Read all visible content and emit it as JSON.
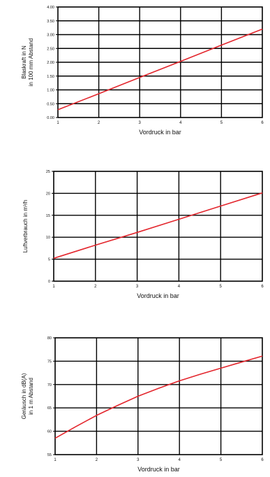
{
  "chart_data": [
    {
      "type": "line",
      "title": "",
      "xlabel": "Vordruck in bar",
      "ylabel": [
        "Blaskraft in N",
        "in 100 mm Abstand"
      ],
      "xlim": [
        1,
        6
      ],
      "ylim": [
        0,
        4
      ],
      "x_ticks": [
        1,
        2,
        3,
        4,
        5,
        6
      ],
      "y_ticks": [
        "0.00",
        "0.50",
        "1.00",
        "1.50",
        "2.00",
        "2.50",
        "3.00",
        "3.50",
        "4.00"
      ],
      "y_tick_values": [
        0,
        0.5,
        1,
        1.5,
        2,
        2.5,
        3,
        3.5,
        4
      ],
      "grid": true,
      "series": [
        {
          "x": [
            1,
            2,
            3,
            4,
            5,
            6
          ],
          "y": [
            0.28,
            0.86,
            1.45,
            2.03,
            2.62,
            3.2
          ],
          "color": "#e3262d"
        }
      ]
    },
    {
      "type": "line",
      "title": "",
      "xlabel": "Vordruck in bar",
      "ylabel": [
        "Luftverbrauch in m³/h"
      ],
      "xlim": [
        1,
        6
      ],
      "ylim": [
        0,
        25
      ],
      "x_ticks": [
        1,
        2,
        3,
        4,
        5,
        6
      ],
      "y_ticks": [
        "0",
        "5",
        "10",
        "15",
        "20",
        "25"
      ],
      "y_tick_values": [
        0,
        5,
        10,
        15,
        20,
        25
      ],
      "grid": true,
      "series": [
        {
          "x": [
            1,
            2,
            3,
            4,
            5,
            6
          ],
          "y": [
            5.2,
            8.2,
            11.1,
            14.1,
            17.1,
            20.1
          ],
          "color": "#e3262d"
        }
      ]
    },
    {
      "type": "line",
      "title": "",
      "xlabel": "Vordruck in bar",
      "ylabel": [
        "Geräusch in dB(A)",
        "in 1 m Abstand"
      ],
      "xlim": [
        1,
        6
      ],
      "ylim": [
        55,
        80
      ],
      "x_ticks": [
        1,
        2,
        3,
        4,
        5,
        6
      ],
      "y_ticks": [
        "55",
        "60",
        "65",
        "70",
        "75",
        "80"
      ],
      "y_tick_values": [
        55,
        60,
        65,
        70,
        75,
        80
      ],
      "grid": true,
      "series": [
        {
          "x": [
            1,
            1.5,
            2,
            2.5,
            3,
            3.5,
            4,
            4.5,
            5,
            5.5,
            6
          ],
          "y": [
            58.5,
            61.0,
            63.4,
            65.5,
            67.5,
            69.2,
            70.8,
            72.2,
            73.5,
            74.8,
            76.1
          ],
          "color": "#e3262d"
        }
      ]
    }
  ]
}
